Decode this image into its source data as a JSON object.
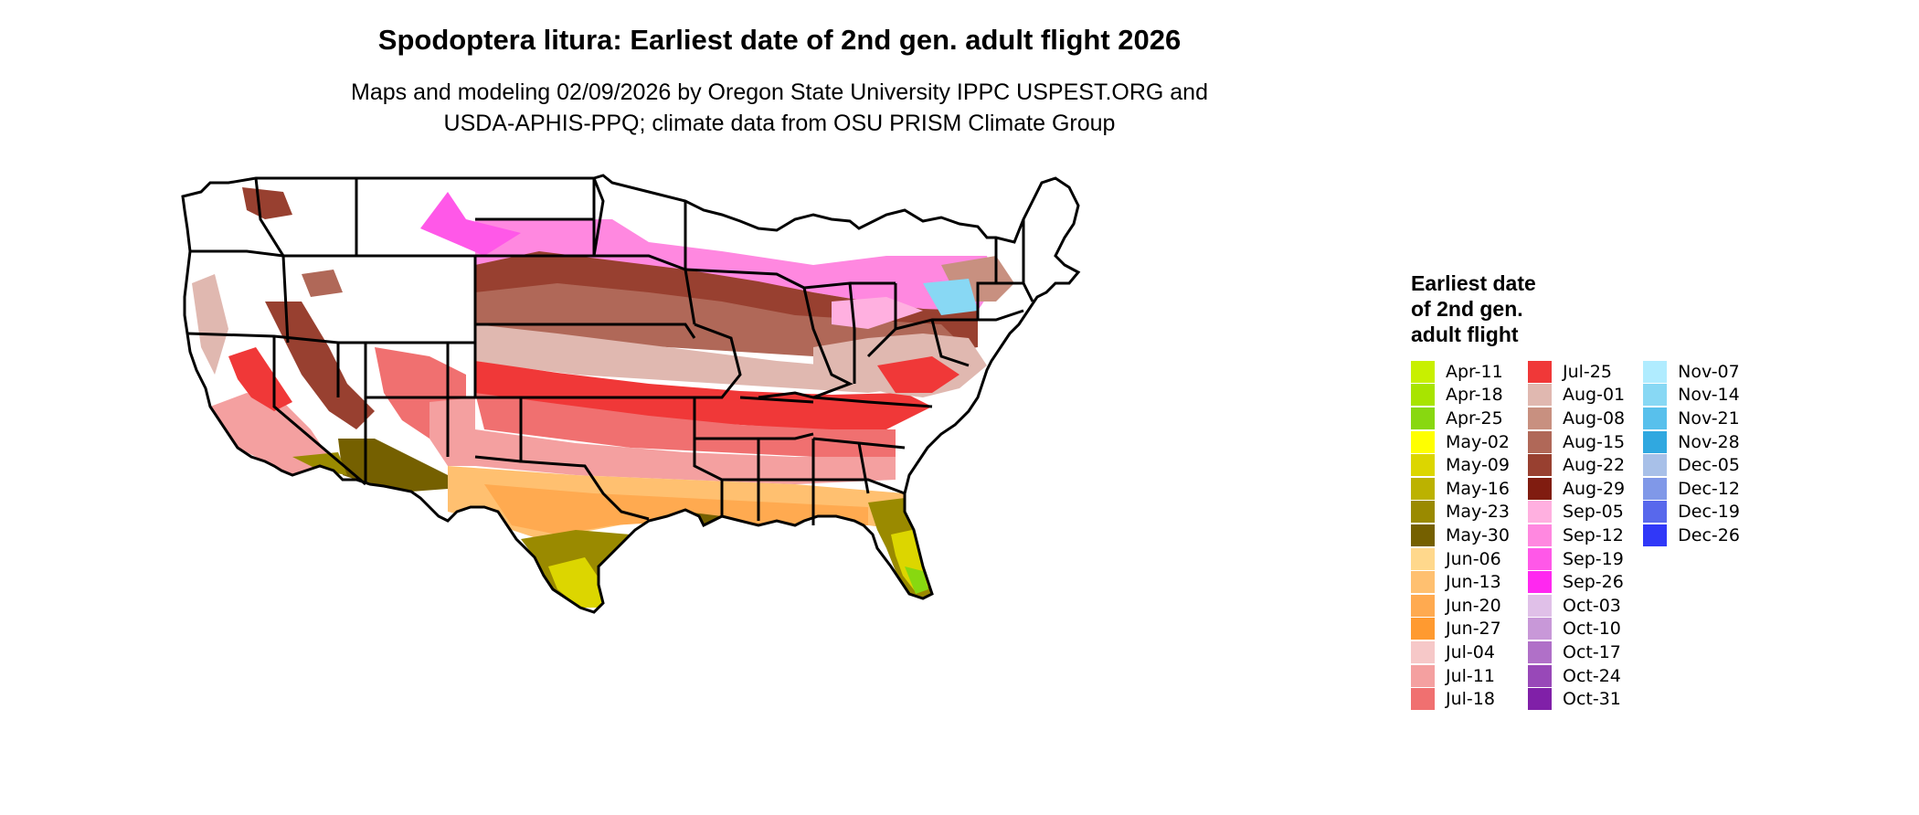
{
  "title": "Spodoptera litura: Earliest date of 2nd gen. adult flight 2026",
  "subtitle_line1": "Maps and modeling 02/09/2026 by Oregon State University IPPC USPEST.ORG and",
  "subtitle_line2": "USDA-APHIS-PPQ; climate data from OSU PRISM Climate Group",
  "legend": {
    "title_lines": [
      "Earliest date",
      "of 2nd gen.",
      "adult flight"
    ],
    "columns": [
      [
        {
          "label": "Apr-11",
          "color": "#c8f000"
        },
        {
          "label": "Apr-18",
          "color": "#a8e400"
        },
        {
          "label": "Apr-25",
          "color": "#88d810"
        },
        {
          "label": "May-02",
          "color": "#ffff00"
        },
        {
          "label": "May-09",
          "color": "#dcd600"
        },
        {
          "label": "May-16",
          "color": "#bcb200"
        },
        {
          "label": "May-23",
          "color": "#9a8a00"
        },
        {
          "label": "May-30",
          "color": "#756000"
        },
        {
          "label": "Jun-06",
          "color": "#ffd88c"
        },
        {
          "label": "Jun-13",
          "color": "#ffc070"
        },
        {
          "label": "Jun-20",
          "color": "#ffaa50"
        },
        {
          "label": "Jun-27",
          "color": "#ff9a30"
        },
        {
          "label": "Jul-04",
          "color": "#f6c8c8"
        },
        {
          "label": "Jul-11",
          "color": "#f4a0a0"
        },
        {
          "label": "Jul-18",
          "color": "#f07070"
        }
      ],
      [
        {
          "label": "Jul-25",
          "color": "#f03838"
        },
        {
          "label": "Aug-01",
          "color": "#e0b8b0"
        },
        {
          "label": "Aug-08",
          "color": "#c89080"
        },
        {
          "label": "Aug-15",
          "color": "#b06858"
        },
        {
          "label": "Aug-22",
          "color": "#984030"
        },
        {
          "label": "Aug-29",
          "color": "#801c10"
        },
        {
          "label": "Sep-05",
          "color": "#ffb0e0"
        },
        {
          "label": "Sep-12",
          "color": "#ff88e0"
        },
        {
          "label": "Sep-19",
          "color": "#ff58e8"
        },
        {
          "label": "Sep-26",
          "color": "#ff28f0"
        },
        {
          "label": "Oct-03",
          "color": "#e0c0e8"
        },
        {
          "label": "Oct-10",
          "color": "#c898d8"
        },
        {
          "label": "Oct-17",
          "color": "#b070c8"
        },
        {
          "label": "Oct-24",
          "color": "#9848b8"
        },
        {
          "label": "Oct-31",
          "color": "#8020a8"
        }
      ],
      [
        {
          "label": "Nov-07",
          "color": "#b0ecff"
        },
        {
          "label": "Nov-14",
          "color": "#88d8f4"
        },
        {
          "label": "Nov-21",
          "color": "#58c0ec"
        },
        {
          "label": "Nov-28",
          "color": "#30a8e0"
        },
        {
          "label": "Dec-05",
          "color": "#a8c0e8"
        },
        {
          "label": "Dec-12",
          "color": "#8098e8"
        },
        {
          "label": "Dec-19",
          "color": "#5868ec"
        },
        {
          "label": "Dec-26",
          "color": "#3038f8"
        }
      ]
    ]
  }
}
